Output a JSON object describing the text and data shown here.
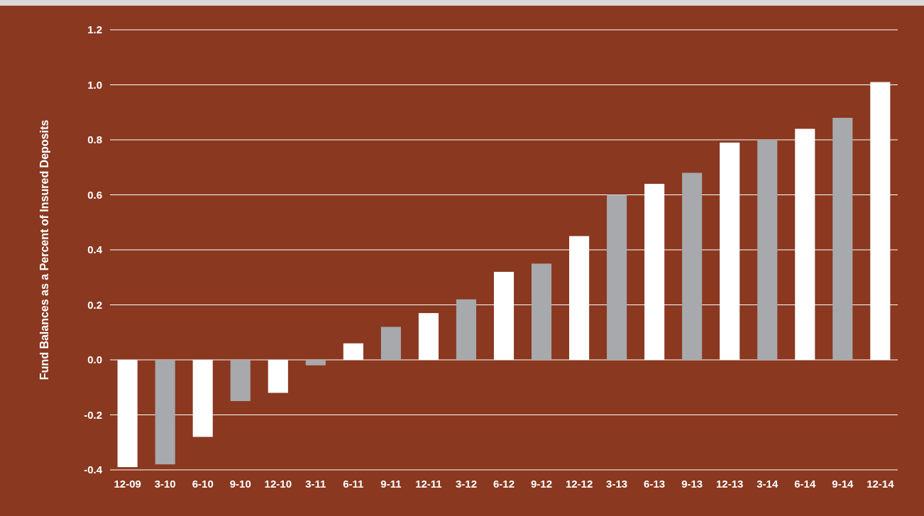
{
  "chart_data": {
    "type": "bar",
    "ylabel": "Fund Balances as a Percent of Insured Deposits",
    "categories": [
      "12-09",
      "3-10",
      "6-10",
      "9-10",
      "12-10",
      "3-11",
      "6-11",
      "9-11",
      "12-11",
      "3-12",
      "6-12",
      "9-12",
      "12-12",
      "3-13",
      "6-13",
      "9-13",
      "12-13",
      "3-14",
      "6-14",
      "9-14",
      "12-14"
    ],
    "values": [
      -0.39,
      -0.38,
      -0.28,
      -0.15,
      -0.12,
      -0.02,
      0.06,
      0.12,
      0.17,
      0.22,
      0.32,
      0.35,
      0.45,
      0.6,
      0.64,
      0.68,
      0.79,
      0.8,
      0.84,
      0.88,
      1.01
    ],
    "colors": [
      "#ffffff",
      "#a7a9ac",
      "#ffffff",
      "#a7a9ac",
      "#ffffff",
      "#a7a9ac",
      "#ffffff",
      "#a7a9ac",
      "#ffffff",
      "#a7a9ac",
      "#ffffff",
      "#a7a9ac",
      "#ffffff",
      "#a7a9ac",
      "#ffffff",
      "#a7a9ac",
      "#ffffff",
      "#a7a9ac",
      "#ffffff",
      "#a7a9ac",
      "#ffffff"
    ],
    "ylim": [
      -0.4,
      1.2
    ],
    "yticks": [
      {
        "value": -0.4,
        "label": "-0.4"
      },
      {
        "value": -0.2,
        "label": "-0.2"
      },
      {
        "value": 0,
        "label": "0.0"
      },
      {
        "value": 0.2,
        "label": "0.2"
      },
      {
        "value": 0.4,
        "label": "0.4"
      },
      {
        "value": 0.6,
        "label": "0.6"
      },
      {
        "value": 0.8,
        "label": "0.8"
      },
      {
        "value": 1,
        "label": "1.0"
      },
      {
        "value": 1.2,
        "label": "1.2"
      }
    ],
    "grid": "y"
  }
}
